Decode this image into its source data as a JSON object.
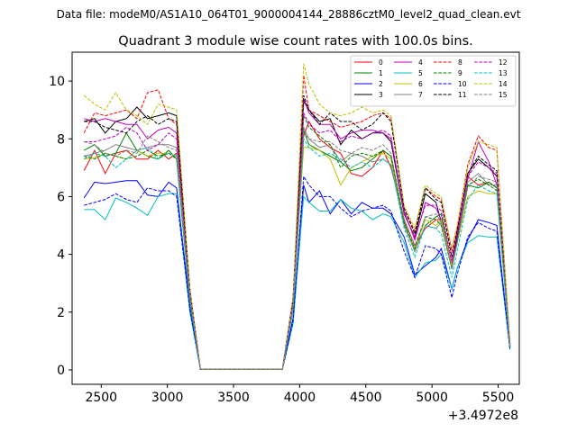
{
  "header": {
    "data_file": "Data file: modeM0/AS1A10_064T01_9000004144_28886cztM0_level2_quad_clean.evt"
  },
  "chart_data": {
    "type": "line",
    "title": "Quadrant 3 module wise count rates with 100.0s bins.",
    "xlabel": "",
    "ylabel": "",
    "x_offset_label": "+3.4972e8",
    "xlim": [
      2280,
      5660
    ],
    "ylim": [
      -0.5,
      11.0
    ],
    "x_ticks": [
      2500,
      3000,
      3500,
      4000,
      4500,
      5000,
      5500
    ],
    "x_tick_labels": [
      "2500",
      "3000",
      "3500",
      "4000",
      "4500",
      "5000",
      "5500"
    ],
    "y_ticks": [
      0,
      2,
      4,
      6,
      8,
      10
    ],
    "y_tick_labels": [
      "0",
      "2",
      "4",
      "6",
      "8",
      "10"
    ],
    "grid": false,
    "legend_position": "top-right",
    "legend_columns": 4,
    "x": [
      2370,
      2450,
      2530,
      2610,
      2690,
      2770,
      2850,
      2930,
      3010,
      3070,
      3170,
      3250,
      3330,
      3410,
      3490,
      3570,
      3650,
      3730,
      3810,
      3870,
      3950,
      4030,
      4070,
      4150,
      4230,
      4310,
      4390,
      4470,
      4550,
      4630,
      4690,
      4790,
      4870,
      4950,
      5030,
      5070,
      5150,
      5190,
      5270,
      5350,
      5430,
      5490,
      5590
    ],
    "series": [
      {
        "name": "0",
        "color": "#ff0000",
        "dash": "solid",
        "values": [
          6.9,
          7.6,
          6.8,
          7.5,
          7.6,
          7.3,
          7.3,
          7.6,
          7.3,
          7.5,
          2.5,
          0.02,
          0.02,
          0.02,
          0.02,
          0.02,
          0.02,
          0.02,
          0.02,
          0.02,
          2.3,
          8.1,
          8.6,
          8.0,
          7.7,
          7.5,
          6.8,
          6.7,
          7.0,
          7.6,
          7.0,
          5.2,
          4.3,
          4.9,
          5.2,
          5.2,
          3.7,
          4.6,
          6.7,
          6.4,
          6.5,
          6.3,
          0.8
        ]
      },
      {
        "name": "1",
        "color": "#008000",
        "dash": "solid",
        "values": [
          7.6,
          7.8,
          7.4,
          7.5,
          8.2,
          7.6,
          7.4,
          7.3,
          7.6,
          7.3,
          2.4,
          0.02,
          0.02,
          0.02,
          0.02,
          0.02,
          0.02,
          0.02,
          0.02,
          0.02,
          2.2,
          8.3,
          7.8,
          7.6,
          7.4,
          7.2,
          6.9,
          7.0,
          7.3,
          7.6,
          7.4,
          5.1,
          4.1,
          5.0,
          5.3,
          5.4,
          3.6,
          4.4,
          6.4,
          6.3,
          6.5,
          6.3,
          0.8
        ]
      },
      {
        "name": "2",
        "color": "#0000ff",
        "dash": "solid",
        "values": [
          5.95,
          6.5,
          6.45,
          6.5,
          6.55,
          6.55,
          6.05,
          6.0,
          6.5,
          6.3,
          2.2,
          0.02,
          0.02,
          0.02,
          0.02,
          0.02,
          0.02,
          0.02,
          0.02,
          0.02,
          1.8,
          6.4,
          5.8,
          6.2,
          5.4,
          5.9,
          5.4,
          5.8,
          5.6,
          5.6,
          5.4,
          4.6,
          3.3,
          3.6,
          3.9,
          4.2,
          2.8,
          3.5,
          4.5,
          5.2,
          5.1,
          5.0,
          0.7
        ]
      },
      {
        "name": "3",
        "color": "#000000",
        "dash": "solid",
        "values": [
          8.6,
          8.7,
          8.2,
          8.6,
          8.7,
          9.1,
          8.7,
          8.8,
          8.9,
          8.8,
          2.8,
          0.02,
          0.02,
          0.02,
          0.02,
          0.02,
          0.02,
          0.02,
          0.02,
          0.02,
          2.5,
          9.3,
          9.0,
          8.6,
          8.7,
          7.8,
          8.3,
          8.0,
          8.2,
          8.2,
          7.9,
          5.4,
          4.6,
          6.1,
          5.8,
          5.1,
          3.5,
          4.6,
          6.8,
          7.3,
          7.0,
          6.7,
          0.8
        ]
      },
      {
        "name": "4",
        "color": "#bf00bf",
        "dash": "solid",
        "values": [
          8.7,
          8.6,
          8.7,
          8.6,
          8.5,
          8.5,
          8.0,
          8.3,
          8.4,
          8.2,
          2.8,
          0.02,
          0.02,
          0.02,
          0.02,
          0.02,
          0.02,
          0.02,
          0.02,
          0.02,
          2.5,
          9.4,
          8.9,
          8.5,
          8.5,
          8.0,
          8.2,
          8.3,
          8.3,
          8.2,
          8.0,
          5.5,
          4.5,
          5.8,
          5.6,
          5.2,
          3.7,
          4.7,
          6.6,
          7.9,
          7.2,
          6.4,
          0.9
        ]
      },
      {
        "name": "5",
        "color": "#00bfbf",
        "dash": "solid",
        "values": [
          5.55,
          5.55,
          5.2,
          5.95,
          5.8,
          5.6,
          5.35,
          6.0,
          6.1,
          6.1,
          2.0,
          0.02,
          0.02,
          0.02,
          0.02,
          0.02,
          0.02,
          0.02,
          0.02,
          0.02,
          1.6,
          6.0,
          5.8,
          5.5,
          5.5,
          5.9,
          5.6,
          5.5,
          5.2,
          5.4,
          5.3,
          4.4,
          3.2,
          3.7,
          3.8,
          4.0,
          2.8,
          3.5,
          4.4,
          4.65,
          4.6,
          4.6,
          0.7
        ]
      },
      {
        "name": "6",
        "color": "#bfbf00",
        "dash": "solid",
        "values": [
          7.3,
          7.35,
          7.5,
          7.4,
          7.3,
          7.6,
          7.4,
          7.5,
          7.5,
          7.4,
          2.4,
          0.02,
          0.02,
          0.02,
          0.02,
          0.02,
          0.02,
          0.02,
          0.02,
          0.02,
          2.2,
          7.7,
          7.7,
          7.6,
          7.3,
          6.4,
          7.0,
          7.2,
          7.4,
          7.5,
          7.3,
          5.0,
          4.2,
          5.2,
          5.0,
          5.2,
          3.6,
          4.4,
          6.0,
          6.2,
          6.1,
          6.1,
          0.8
        ]
      },
      {
        "name": "7",
        "color": "#808080",
        "dash": "solid",
        "values": [
          7.4,
          7.5,
          7.6,
          7.8,
          7.7,
          7.6,
          7.7,
          7.8,
          7.8,
          7.7,
          2.5,
          0.02,
          0.02,
          0.02,
          0.02,
          0.02,
          0.02,
          0.02,
          0.02,
          0.02,
          2.3,
          8.4,
          8.0,
          7.7,
          7.8,
          7.2,
          7.5,
          7.4,
          7.2,
          7.3,
          7.1,
          5.0,
          4.1,
          5.0,
          4.9,
          5.1,
          3.5,
          4.4,
          6.5,
          6.8,
          6.4,
          6.4,
          0.8
        ]
      },
      {
        "name": "8",
        "color": "#ff0000",
        "dash": "dashed",
        "values": [
          8.2,
          8.9,
          8.8,
          8.9,
          9.0,
          8.7,
          9.6,
          9.7,
          8.7,
          8.5,
          2.7,
          0.02,
          0.02,
          0.02,
          0.02,
          0.02,
          0.02,
          0.02,
          0.02,
          0.02,
          2.4,
          10.2,
          9.0,
          8.8,
          8.6,
          8.4,
          8.5,
          8.6,
          8.8,
          8.9,
          8.7,
          5.6,
          4.8,
          6.3,
          6.0,
          5.9,
          4.1,
          4.9,
          7.1,
          8.1,
          7.7,
          7.6,
          0.9
        ]
      },
      {
        "name": "9",
        "color": "#008000",
        "dash": "dashed",
        "values": [
          7.4,
          7.3,
          7.5,
          7.4,
          7.3,
          7.4,
          7.6,
          7.4,
          7.5,
          7.3,
          2.4,
          0.02,
          0.02,
          0.02,
          0.02,
          0.02,
          0.02,
          0.02,
          0.02,
          0.02,
          2.1,
          8.8,
          8.4,
          8.1,
          7.8,
          7.0,
          7.4,
          7.5,
          7.4,
          7.6,
          7.4,
          5.1,
          4.2,
          5.3,
          5.2,
          5.0,
          3.5,
          4.4,
          6.4,
          6.6,
          6.4,
          6.2,
          0.8
        ]
      },
      {
        "name": "10",
        "color": "#0000ff",
        "dash": "dashed",
        "values": [
          5.7,
          5.8,
          5.9,
          6.1,
          5.9,
          5.8,
          6.3,
          6.2,
          6.2,
          6.0,
          2.1,
          0.02,
          0.02,
          0.02,
          0.02,
          0.02,
          0.02,
          0.02,
          0.02,
          0.02,
          1.7,
          6.7,
          6.4,
          6.0,
          6.0,
          5.6,
          5.3,
          5.5,
          5.6,
          5.7,
          5.5,
          4.1,
          3.2,
          4.3,
          4.2,
          4.0,
          2.5,
          3.3,
          4.6,
          5.1,
          4.9,
          4.8,
          0.7
        ]
      },
      {
        "name": "11",
        "color": "#000000",
        "dash": "dashed",
        "values": [
          8.6,
          8.6,
          8.4,
          8.3,
          8.2,
          8.6,
          8.8,
          8.5,
          8.7,
          8.6,
          2.7,
          0.02,
          0.02,
          0.02,
          0.02,
          0.02,
          0.02,
          0.02,
          0.02,
          0.02,
          2.4,
          9.5,
          9.0,
          8.5,
          8.9,
          8.6,
          8.6,
          8.3,
          8.5,
          8.9,
          8.6,
          5.6,
          4.7,
          6.3,
          5.9,
          5.8,
          3.9,
          4.8,
          6.8,
          7.4,
          7.1,
          6.9,
          0.9
        ]
      },
      {
        "name": "12",
        "color": "#bf00bf",
        "dash": "dashed",
        "values": [
          7.9,
          7.9,
          8.0,
          8.1,
          8.4,
          8.2,
          7.6,
          7.8,
          8.2,
          8.0,
          2.6,
          0.02,
          0.02,
          0.02,
          0.02,
          0.02,
          0.02,
          0.02,
          0.02,
          0.02,
          2.3,
          8.9,
          8.5,
          8.2,
          8.3,
          7.9,
          8.1,
          8.0,
          8.2,
          8.3,
          8.1,
          5.4,
          4.6,
          5.7,
          5.7,
          5.5,
          3.8,
          4.7,
          6.7,
          7.2,
          7.0,
          6.8,
          0.8
        ]
      },
      {
        "name": "13",
        "color": "#00bfbf",
        "dash": "dashed",
        "values": [
          7.3,
          7.5,
          7.4,
          7.0,
          7.3,
          7.6,
          7.7,
          7.3,
          7.5,
          7.4,
          2.4,
          0.02,
          0.02,
          0.02,
          0.02,
          0.02,
          0.02,
          0.02,
          0.02,
          0.02,
          2.1,
          8.0,
          7.7,
          7.4,
          7.5,
          7.3,
          7.0,
          7.2,
          7.0,
          7.3,
          7.1,
          4.9,
          3.9,
          5.0,
          4.9,
          4.7,
          3.2,
          4.1,
          5.9,
          6.4,
          6.2,
          6.1,
          0.8
        ]
      },
      {
        "name": "14",
        "color": "#bfbf00",
        "dash": "dashed",
        "values": [
          9.5,
          9.2,
          9.0,
          9.6,
          9.0,
          8.8,
          8.5,
          9.2,
          9.1,
          9.0,
          2.8,
          0.02,
          0.02,
          0.02,
          0.02,
          0.02,
          0.02,
          0.02,
          0.02,
          0.02,
          2.5,
          10.6,
          9.9,
          9.2,
          8.9,
          8.8,
          8.9,
          9.1,
          8.9,
          9.0,
          8.8,
          5.7,
          4.9,
          6.4,
          6.1,
          6.0,
          4.2,
          5.0,
          7.0,
          7.9,
          7.8,
          7.7,
          0.9
        ]
      },
      {
        "name": "15",
        "color": "#808080",
        "dash": "dashed",
        "values": [
          7.9,
          7.8,
          7.5,
          7.4,
          7.6,
          7.5,
          8.1,
          7.9,
          7.7,
          7.6,
          2.5,
          0.02,
          0.02,
          0.02,
          0.02,
          0.02,
          0.02,
          0.02,
          0.02,
          0.02,
          2.2,
          8.2,
          8.0,
          7.9,
          7.9,
          7.6,
          7.5,
          7.7,
          7.6,
          7.8,
          7.5,
          5.2,
          4.3,
          5.3,
          5.4,
          5.1,
          3.5,
          4.4,
          6.3,
          6.7,
          6.6,
          6.5,
          0.8
        ]
      }
    ]
  }
}
